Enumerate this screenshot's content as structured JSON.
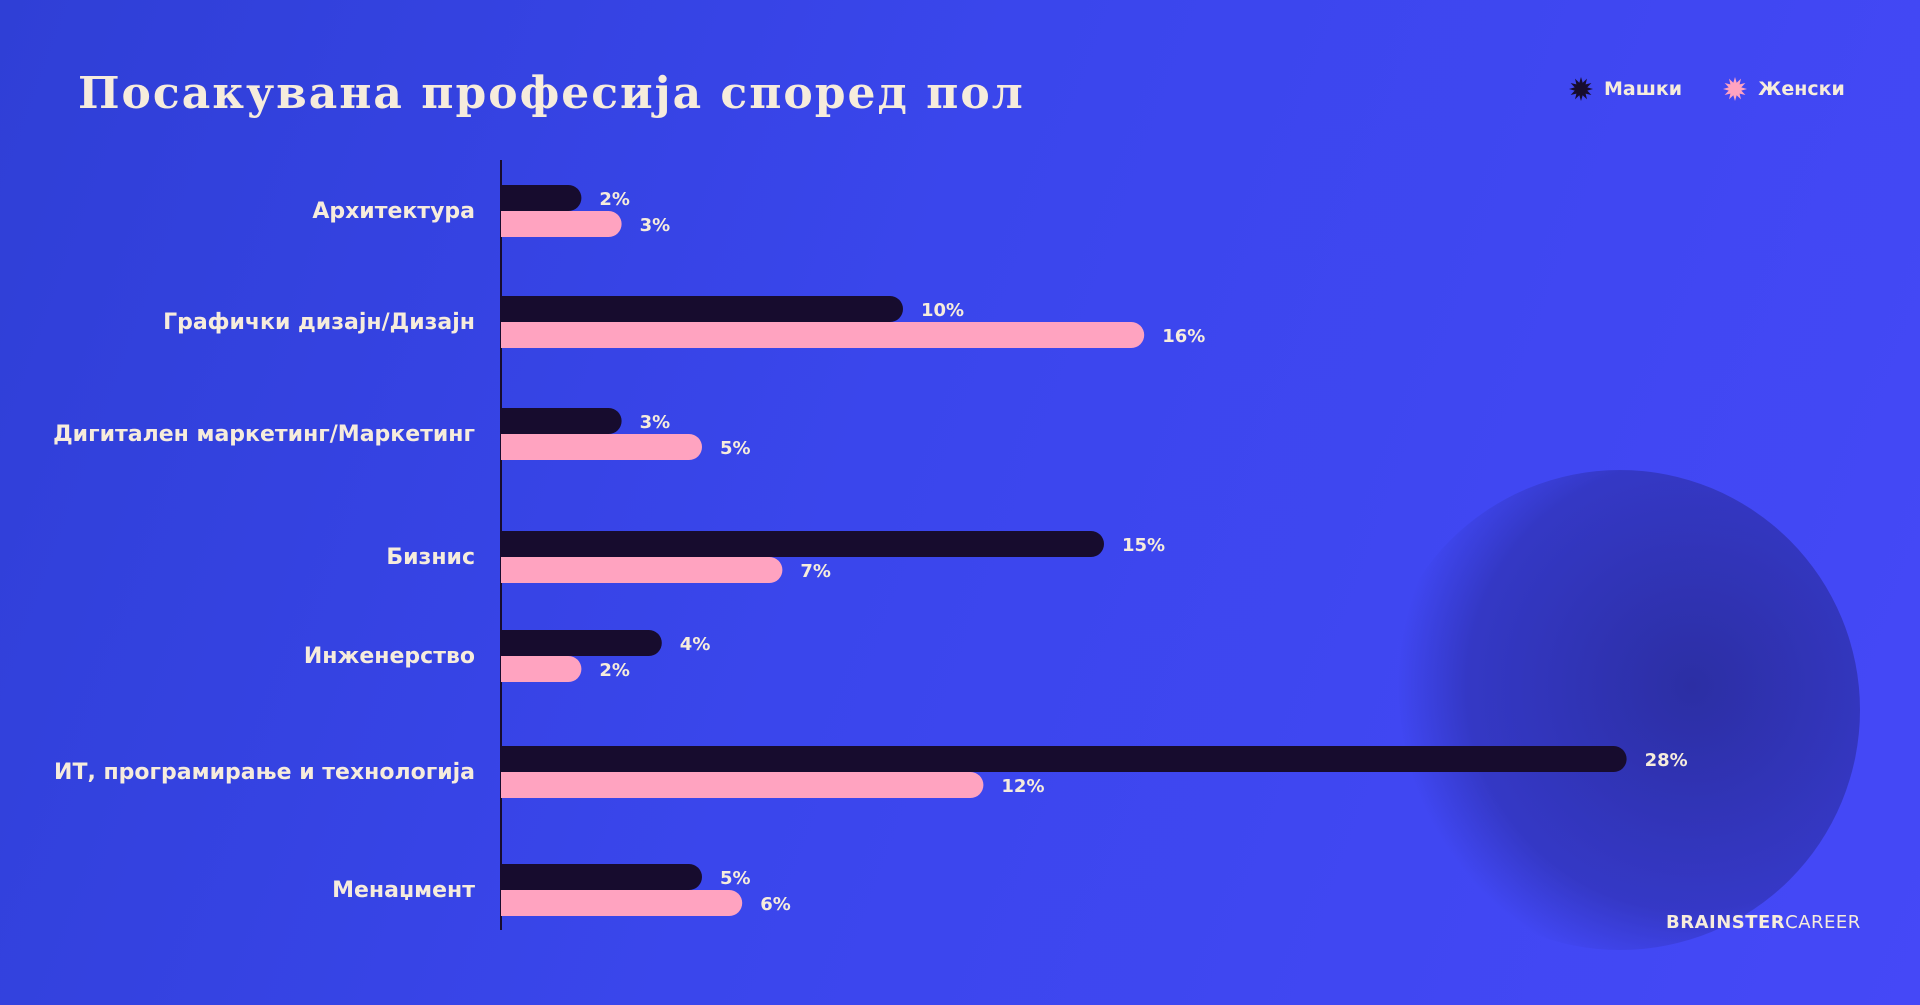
{
  "title": "Посакувана професија според пол",
  "legend": {
    "male": "Машки",
    "female": "Женски"
  },
  "brand": {
    "part1": "BRAINSTER",
    "part2": "CAREER"
  },
  "colors": {
    "male": "#170c2e",
    "female": "#ffa3c0",
    "text": "#f6ecdc"
  },
  "chart_data": {
    "type": "bar",
    "orientation": "horizontal",
    "title": "Посакувана професија според пол",
    "categories": [
      "Архитектура",
      "Графички дизајн/Дизајн",
      "Дигитален маркетинг/Маркетинг",
      "Бизнис",
      "Инженерство",
      "ИТ, програмирање и технологија",
      "Менаџмент"
    ],
    "series": [
      {
        "name": "Машки",
        "values": [
          2,
          10,
          3,
          15,
          4,
          28,
          5
        ],
        "labels": [
          "2%",
          "10%",
          "3%",
          "15%",
          "4%",
          "28%",
          "5%"
        ]
      },
      {
        "name": "Женски",
        "values": [
          3,
          16,
          5,
          7,
          2,
          12,
          6
        ],
        "labels": [
          "3%",
          "16%",
          "5%",
          "7%",
          "2%",
          "12%",
          "6%"
        ]
      }
    ],
    "unit": "%",
    "xlim": [
      0,
      28
    ],
    "grid": false,
    "legend_position": "top-right"
  }
}
